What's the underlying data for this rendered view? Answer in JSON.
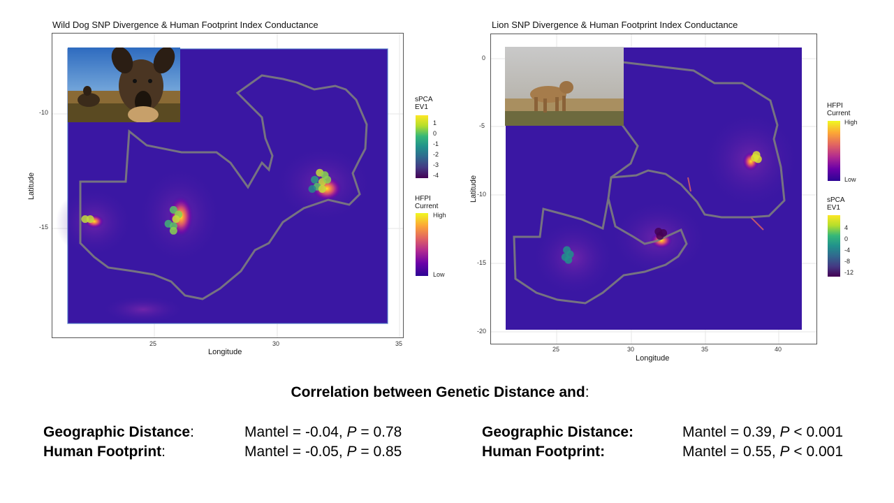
{
  "chart_data": [
    {
      "type": "scatter",
      "title": "Wild Dog SNP Divergence & Human Footprint Index Conductance",
      "xlabel": "Longitude",
      "ylabel": "Latitude",
      "xlim": [
        21.2,
        35.1
      ],
      "ylim": [
        -19.8,
        -6.7
      ],
      "x_ticks": [
        "25",
        "30",
        "35"
      ],
      "x_tick_values": [
        25,
        30,
        35
      ],
      "y_ticks": [
        "-10",
        "-15"
      ],
      "y_tick_values": [
        -10,
        -15
      ],
      "grid": true,
      "background": "human footprint conductance raster (plasma palette)",
      "points": [
        {
          "x": 22.5,
          "y": -14.7,
          "ev1": 1
        },
        {
          "x": 22.7,
          "y": -14.7,
          "ev1": 1
        },
        {
          "x": 26.0,
          "y": -14.3,
          "ev1": 0
        },
        {
          "x": 26.2,
          "y": -14.5,
          "ev1": 0.5
        },
        {
          "x": 26.1,
          "y": -14.7,
          "ev1": 1
        },
        {
          "x": 25.8,
          "y": -14.9,
          "ev1": -0.5
        },
        {
          "x": 26.0,
          "y": -15.0,
          "ev1": 0
        },
        {
          "x": 26.0,
          "y": -15.2,
          "ev1": 0.5
        },
        {
          "x": 31.6,
          "y": -13.0,
          "ev1": -1
        },
        {
          "x": 31.8,
          "y": -12.7,
          "ev1": 1
        },
        {
          "x": 32.0,
          "y": -12.8,
          "ev1": 0.5
        },
        {
          "x": 31.9,
          "y": -13.1,
          "ev1": 1
        },
        {
          "x": 31.7,
          "y": -13.3,
          "ev1": 0
        },
        {
          "x": 32.1,
          "y": -13.0,
          "ev1": 0.5
        },
        {
          "x": 31.5,
          "y": -13.4,
          "ev1": -1.5
        },
        {
          "x": 31.9,
          "y": -13.4,
          "ev1": 1
        }
      ],
      "legends": [
        {
          "title": [
            "sPCA",
            "EV1"
          ],
          "ticks": [
            "1",
            "0",
            "-1",
            "-2",
            "-3",
            "-4"
          ],
          "palette": "viridis"
        },
        {
          "title": [
            "HFPI",
            "Current"
          ],
          "ticks": [
            "High",
            "Low"
          ],
          "palette": "plasma"
        }
      ],
      "legend_position": "right",
      "inset_photo": "wild dog photograph"
    },
    {
      "type": "scatter",
      "title": "Lion SNP Divergence & Human Footprint Index Conductance",
      "xlabel": "Longitude",
      "ylabel": "Latitude",
      "xlim": [
        21.2,
        41.8
      ],
      "ylim": [
        -20.8,
        1.0
      ],
      "x_ticks": [
        "25",
        "30",
        "35",
        "40"
      ],
      "x_tick_values": [
        25,
        30,
        35,
        40
      ],
      "y_ticks": [
        "0",
        "-5",
        "-10",
        "-15",
        "-20"
      ],
      "y_tick_values": [
        0,
        -5,
        -10,
        -15,
        -20
      ],
      "grid": true,
      "background": "human footprint conductance raster (plasma palette)",
      "points": [
        {
          "x": 26.0,
          "y": -14.2,
          "ev1": -3
        },
        {
          "x": 26.2,
          "y": -14.5,
          "ev1": -3
        },
        {
          "x": 25.9,
          "y": -14.7,
          "ev1": -3
        },
        {
          "x": 26.1,
          "y": -14.9,
          "ev1": -3
        },
        {
          "x": 31.8,
          "y": -12.9,
          "ev1": -12
        },
        {
          "x": 32.1,
          "y": -13.0,
          "ev1": -12
        },
        {
          "x": 31.9,
          "y": -13.2,
          "ev1": -12
        },
        {
          "x": 38.0,
          "y": -7.5,
          "ev1": 5
        },
        {
          "x": 38.1,
          "y": -7.8,
          "ev1": 5
        },
        {
          "x": 37.9,
          "y": -7.7,
          "ev1": 5
        }
      ],
      "legends": [
        {
          "title": [
            "HFPI",
            "Current"
          ],
          "ticks": [
            "High",
            "Low"
          ],
          "palette": "plasma"
        },
        {
          "title": [
            "sPCA",
            "EV1"
          ],
          "ticks": [
            "4",
            "0",
            "-4",
            "-8",
            "-12"
          ],
          "palette": "viridis"
        }
      ],
      "legend_position": "right",
      "inset_photo": "lion photograph"
    }
  ],
  "summary": {
    "heading": "Correlation between Genetic Distance and",
    "heading_colon": ":",
    "left": {
      "geo_label": "Geographic Distance",
      "geo_colon": ":",
      "geo_mantel": "Mantel = -0.04, ",
      "geo_p_symbol": "P",
      "geo_p_value": " = 0.78",
      "hf_label": "Human Footprint",
      "hf_colon": ":",
      "hf_mantel": "Mantel = -0.05, ",
      "hf_p_symbol": "P",
      "hf_p_value": " = 0.85"
    },
    "right": {
      "geo_label": "Geographic Distance:",
      "geo_mantel": "Mantel = 0.39, ",
      "geo_p_symbol": "P",
      "geo_p_value": " < 0.001",
      "hf_label": "Human Footprint:",
      "hf_mantel": "Mantel = 0.55, ",
      "hf_p_symbol": "P",
      "hf_p_value": " < 0.001"
    }
  },
  "colors": {
    "raster_base": "#3a17a3",
    "border_line": "#7d7d7d",
    "hot_spot": "#f1c93a"
  }
}
